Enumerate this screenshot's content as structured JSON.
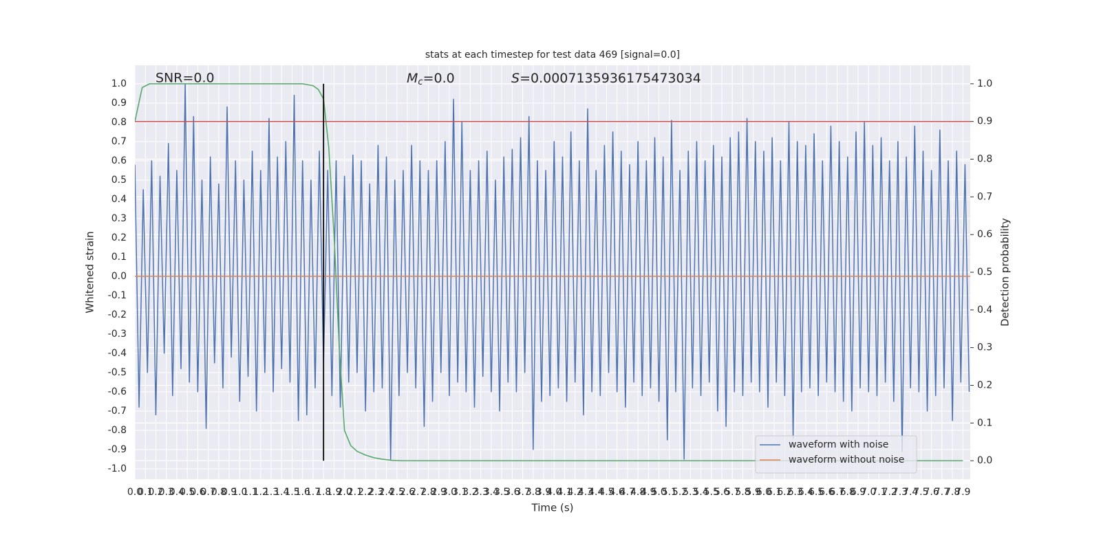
{
  "chart_data": {
    "type": "line",
    "title": "stats at each timestep for test data 469 [signal=0.0]",
    "xlabel": "Time (s)",
    "ylabel": "Whitened strain",
    "y2label": "Detection probability",
    "annotations": {
      "snr": "SNR=0.0",
      "mc": {
        "symbol": "M",
        "sub": "c",
        "text": "=0.0"
      },
      "s": {
        "symbol": "S",
        "text": "=0.0007135936175473034"
      }
    },
    "xlim": [
      0,
      7.97
    ],
    "ylim": [
      -1.054,
      1.096
    ],
    "y2lim": [
      -0.049,
      1.049
    ],
    "grid": true,
    "legend": "lower right",
    "xticks": [
      {
        "value": 0,
        "label": "0.0"
      },
      0.1,
      0.2,
      0.3,
      0.4,
      0.5,
      0.6,
      0.7,
      0.8,
      0.9,
      {
        "value": 1,
        "label": "1.0"
      },
      1.1,
      1.2,
      1.3,
      1.4,
      1.5,
      1.6,
      1.7,
      1.8,
      1.9,
      {
        "value": 2,
        "label": "2.0"
      },
      2.1,
      2.2,
      2.3,
      2.4,
      2.5,
      2.6,
      2.7,
      2.8,
      2.9,
      {
        "value": 3,
        "label": "3.0"
      },
      3.1,
      3.2,
      3.3,
      3.4,
      3.5,
      3.6,
      3.7,
      3.8,
      3.9,
      {
        "value": 4,
        "label": "4.0"
      },
      4.1,
      4.2,
      4.3,
      4.4,
      4.5,
      4.6,
      4.7,
      4.8,
      4.9,
      {
        "value": 5,
        "label": "5.0"
      },
      5.1,
      5.2,
      5.3,
      5.4,
      5.5,
      5.6,
      5.7,
      5.8,
      5.9,
      {
        "value": 6,
        "label": "6.0"
      },
      6.1,
      6.2,
      6.3,
      6.4,
      6.5,
      6.6,
      6.7,
      6.8,
      6.9,
      {
        "value": 7,
        "label": "7.0"
      },
      7.1,
      7.2,
      7.3,
      7.4,
      7.5,
      7.6,
      7.7,
      7.8,
      7.9
    ],
    "yticks": [
      {
        "value": -1,
        "label": "-1.0"
      },
      -0.9,
      -0.8,
      -0.7,
      -0.6,
      -0.5,
      -0.4,
      -0.3,
      -0.2,
      -0.1,
      {
        "value": 0,
        "label": "0.0"
      },
      0.1,
      0.2,
      0.3,
      0.4,
      0.5,
      0.6,
      0.7,
      0.8,
      0.9,
      {
        "value": 1,
        "label": "1.0"
      }
    ],
    "y2ticks": [
      {
        "value": 0,
        "label": "0.0"
      },
      0.1,
      0.2,
      0.3,
      0.4,
      0.5,
      0.6,
      0.7,
      0.8,
      0.9,
      {
        "value": 1,
        "label": "1.0"
      }
    ],
    "threshold": {
      "value": 0.9,
      "axis": "y2",
      "color": "#c44e52"
    },
    "vline": {
      "x": 1.8,
      "y2range": [
        0,
        1
      ],
      "color": "#000000"
    },
    "series": [
      {
        "name": "waveform with noise",
        "color": "#4c72b0",
        "x": [
          0,
          0.04,
          0.08,
          0.12,
          0.16,
          0.2,
          0.24,
          0.28,
          0.32,
          0.36,
          0.4,
          0.44,
          0.48,
          0.52,
          0.56,
          0.6,
          0.64,
          0.68,
          0.72,
          0.76,
          0.8,
          0.84,
          0.88,
          0.92,
          0.96,
          1,
          1.04,
          1.08,
          1.12,
          1.16,
          1.2,
          1.24,
          1.28,
          1.32,
          1.36,
          1.4,
          1.44,
          1.48,
          1.52,
          1.56,
          1.6,
          1.64,
          1.68,
          1.72,
          1.76,
          1.8,
          1.84,
          1.88,
          1.92,
          1.96,
          2,
          2.04,
          2.08,
          2.12,
          2.16,
          2.2,
          2.24,
          2.28,
          2.32,
          2.36,
          2.4,
          2.44,
          2.48,
          2.52,
          2.56,
          2.6,
          2.64,
          2.68,
          2.72,
          2.76,
          2.8,
          2.84,
          2.88,
          2.92,
          2.96,
          3,
          3.04,
          3.08,
          3.12,
          3.16,
          3.2,
          3.24,
          3.28,
          3.32,
          3.36,
          3.4,
          3.44,
          3.48,
          3.52,
          3.56,
          3.6,
          3.64,
          3.68,
          3.72,
          3.76,
          3.8,
          3.84,
          3.88,
          3.92,
          3.96,
          4,
          4.04,
          4.08,
          4.12,
          4.16,
          4.2,
          4.24,
          4.28,
          4.32,
          4.36,
          4.4,
          4.44,
          4.48,
          4.52,
          4.56,
          4.6,
          4.64,
          4.68,
          4.72,
          4.76,
          4.8,
          4.84,
          4.88,
          4.92,
          4.96,
          5,
          5.04,
          5.08,
          5.12,
          5.16,
          5.2,
          5.24,
          5.28,
          5.32,
          5.36,
          5.4,
          5.44,
          5.48,
          5.52,
          5.56,
          5.6,
          5.64,
          5.68,
          5.72,
          5.76,
          5.8,
          5.84,
          5.88,
          5.92,
          5.96,
          6,
          6.04,
          6.08,
          6.12,
          6.16,
          6.2,
          6.24,
          6.28,
          6.32,
          6.36,
          6.4,
          6.44,
          6.48,
          6.52,
          6.56,
          6.6,
          6.64,
          6.68,
          6.72,
          6.76,
          6.8,
          6.84,
          6.88,
          6.92,
          6.96,
          7,
          7.04,
          7.08,
          7.12,
          7.16,
          7.2,
          7.24,
          7.28,
          7.32,
          7.36,
          7.4,
          7.44,
          7.48,
          7.52,
          7.56,
          7.6,
          7.64,
          7.68,
          7.72,
          7.76,
          7.8,
          7.84,
          7.88,
          7.92,
          7.96
        ],
        "values": [
          0.58,
          -0.68,
          0.45,
          -0.5,
          0.6,
          -0.72,
          0.52,
          -0.4,
          0.69,
          -0.62,
          0.55,
          -0.48,
          1.0,
          -0.55,
          0.83,
          -0.6,
          0.5,
          -0.79,
          0.62,
          -0.45,
          0.48,
          -0.58,
          0.88,
          -0.42,
          0.6,
          -0.65,
          0.5,
          -0.52,
          0.65,
          -0.7,
          0.55,
          -0.5,
          0.82,
          -0.6,
          0.62,
          -0.48,
          0.7,
          -0.55,
          0.94,
          -0.75,
          0.6,
          -0.72,
          0.5,
          -0.58,
          0.65,
          -0.45,
          0.55,
          -0.62,
          0.6,
          -0.68,
          0.52,
          -0.55,
          0.63,
          -0.5,
          0.6,
          -0.7,
          0.48,
          -0.6,
          0.68,
          -0.58,
          0.62,
          -0.95,
          0.5,
          -0.62,
          0.55,
          -0.5,
          0.68,
          -0.58,
          0.6,
          -0.78,
          0.55,
          -0.65,
          0.6,
          -0.5,
          0.7,
          -0.62,
          0.92,
          -0.55,
          0.8,
          -0.6,
          0.55,
          -0.68,
          0.6,
          -0.52,
          0.65,
          -0.6,
          0.5,
          -0.7,
          0.62,
          -0.55,
          0.66,
          -0.6,
          0.72,
          -0.5,
          0.83,
          -0.9,
          0.6,
          -0.65,
          0.55,
          -0.62,
          0.7,
          -0.58,
          0.62,
          -0.65,
          0.75,
          -0.55,
          0.6,
          -0.72,
          0.87,
          -0.6,
          0.55,
          -0.62,
          0.68,
          -0.5,
          0.75,
          -0.6,
          0.65,
          -0.68,
          0.58,
          -0.55,
          0.7,
          -0.62,
          0.6,
          -0.58,
          0.72,
          -0.65,
          0.62,
          -0.85,
          0.81,
          -0.6,
          0.55,
          -0.95,
          0.65,
          -0.58,
          0.7,
          -0.62,
          0.6,
          -0.55,
          0.68,
          -0.7,
          0.62,
          -0.78,
          0.72,
          -0.6,
          0.75,
          -0.62,
          0.82,
          -0.55,
          0.7,
          -0.6,
          0.65,
          -0.68,
          0.72,
          -0.55,
          0.6,
          -0.62,
          0.8,
          -0.84,
          0.7,
          -0.6,
          0.68,
          -0.58,
          0.74,
          -0.62,
          0.6,
          -0.55,
          0.78,
          -0.6,
          0.7,
          -0.65,
          0.62,
          -0.7,
          0.75,
          -0.58,
          0.8,
          -0.6,
          0.68,
          -0.62,
          0.72,
          -0.55,
          0.6,
          -0.65,
          0.7,
          -0.91,
          0.62,
          -0.58,
          0.78,
          -0.6,
          0.65,
          -0.7,
          0.55,
          -0.62,
          0.76,
          -0.58,
          0.6,
          -0.75,
          0.65,
          -0.55,
          0.58,
          -0.6
        ]
      },
      {
        "name": "waveform without noise",
        "color": "#dd8452",
        "x": [
          0,
          7.97
        ],
        "values": [
          0,
          0
        ]
      },
      {
        "color": "#55a868",
        "axis": "y2",
        "x": [
          0,
          0.07,
          0.14,
          0.3,
          0.5,
          0.8,
          1.0,
          1.2,
          1.4,
          1.6,
          1.7,
          1.75,
          1.8,
          1.85,
          1.9,
          1.95,
          2.0,
          2.06,
          2.12,
          2.2,
          2.28,
          2.36,
          2.45,
          2.55,
          3.0,
          4.0,
          5.0,
          6.0,
          7.0,
          7.9
        ],
        "values": [
          0.9,
          0.99,
          1.0,
          1.0,
          1.0,
          1.0,
          1.0,
          1.0,
          1.0,
          1.0,
          0.995,
          0.985,
          0.96,
          0.83,
          0.6,
          0.3,
          0.08,
          0.04,
          0.025,
          0.015,
          0.008,
          0.004,
          0.001,
          0,
          0,
          0,
          0,
          0,
          0,
          0
        ]
      }
    ]
  }
}
